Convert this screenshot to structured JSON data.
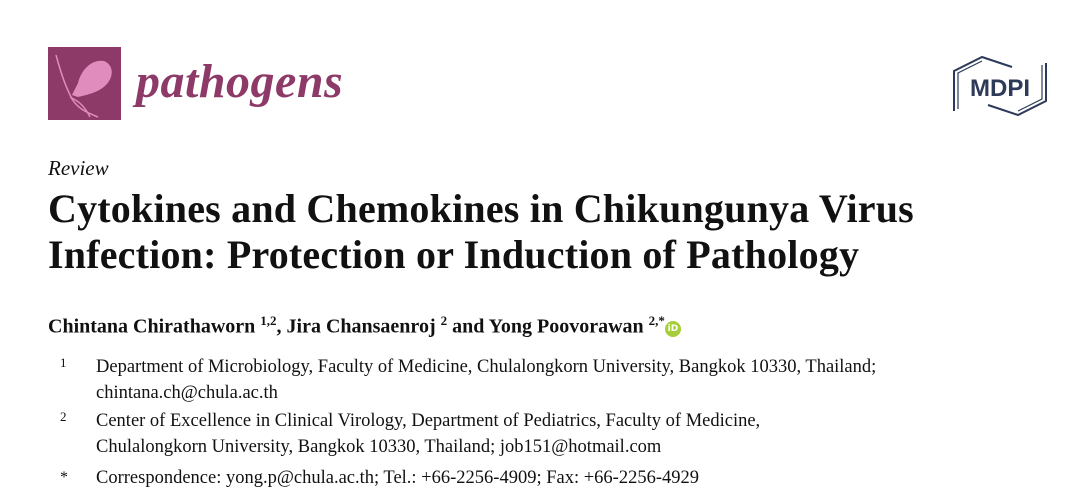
{
  "header": {
    "journal_name": "pathogens",
    "publisher_logo": "MDPI",
    "brand_color": "#8e3a68"
  },
  "article": {
    "type": "Review",
    "title_line1": "Cytokines and Chemokines in Chikungunya Virus",
    "title_line2": "Infection: Protection or Induction of Pathology",
    "authors": [
      {
        "name": "Chintana Chirathaworn",
        "sup": "1,2"
      },
      {
        "name": "Jira Chansaenroj",
        "sup": "2"
      },
      {
        "name": "Yong Poovorawan",
        "sup": "2,*"
      }
    ],
    "sep1": ", ",
    "sep2": " and ",
    "orcid_label": "iD",
    "affiliations": [
      {
        "mark": "1",
        "line1": "Department of Microbiology, Faculty of Medicine, Chulalongkorn University, Bangkok 10330, Thailand;",
        "line2": "chintana.ch@chula.ac.th"
      },
      {
        "mark": "2",
        "line1": "Center of Excellence in Clinical Virology, Department of Pediatrics, Faculty of Medicine,",
        "line2": "Chulalongkorn  University, Bangkok 10330, Thailand; job151@hotmail.com"
      },
      {
        "mark": "*",
        "line1": "Correspondence: yong.p@chula.ac.th; Tel.: +66-2256-4909; Fax: +66-2256-4929"
      }
    ]
  }
}
